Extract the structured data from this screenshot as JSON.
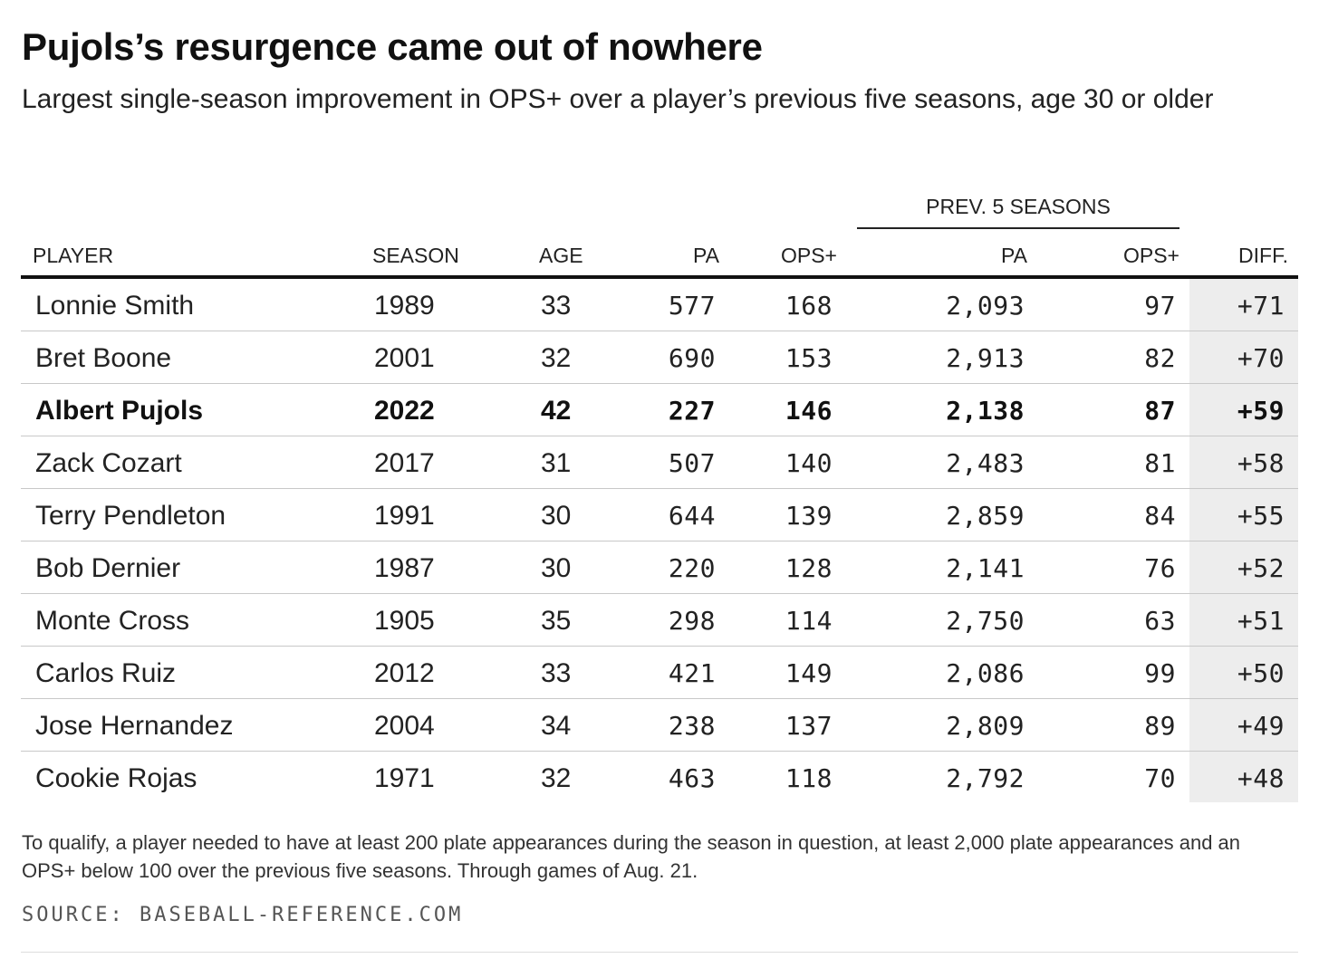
{
  "title": "Pujols’s resurgence came out of nowhere",
  "subtitle": "Largest single-season improvement in OPS+ over a player’s previous five seasons, age 30 or older",
  "chart_data": {
    "type": "table",
    "title": "Pujols’s resurgence came out of nowhere",
    "subtitle": "Largest single-season improvement in OPS+ over a player’s previous five seasons, age 30 or older",
    "column_group": "PREV. 5 SEASONS",
    "columns": [
      "PLAYER",
      "SEASON",
      "AGE",
      "PA",
      "OPS+",
      "PA",
      "OPS+",
      "DIFF."
    ],
    "highlight_row": 2,
    "highlight_color": "#ededed",
    "rows": [
      [
        "Lonnie Smith",
        "1989",
        "33",
        "577",
        "168",
        "2,093",
        "97",
        "+71"
      ],
      [
        "Bret Boone",
        "2001",
        "32",
        "690",
        "153",
        "2,913",
        "82",
        "+70"
      ],
      [
        "Albert Pujols",
        "2022",
        "42",
        "227",
        "146",
        "2,138",
        "87",
        "+59"
      ],
      [
        "Zack Cozart",
        "2017",
        "31",
        "507",
        "140",
        "2,483",
        "81",
        "+58"
      ],
      [
        "Terry Pendleton",
        "1991",
        "30",
        "644",
        "139",
        "2,859",
        "84",
        "+55"
      ],
      [
        "Bob Dernier",
        "1987",
        "30",
        "220",
        "128",
        "2,141",
        "76",
        "+52"
      ],
      [
        "Monte Cross",
        "1905",
        "35",
        "298",
        "114",
        "2,750",
        "63",
        "+51"
      ],
      [
        "Carlos Ruiz",
        "2012",
        "33",
        "421",
        "149",
        "2,086",
        "99",
        "+50"
      ],
      [
        "Jose Hernandez",
        "2004",
        "34",
        "238",
        "137",
        "2,809",
        "89",
        "+49"
      ],
      [
        "Cookie Rojas",
        "1971",
        "32",
        "463",
        "118",
        "2,792",
        "70",
        "+48"
      ]
    ]
  },
  "footnote": "To qualify, a player needed to have at least 200 plate appearances during the season in question, at least 2,000 plate appearances and an OPS+ below 100 over the previous five seasons. Through games of Aug. 21.",
  "source": "SOURCE: BASEBALL-REFERENCE.COM"
}
